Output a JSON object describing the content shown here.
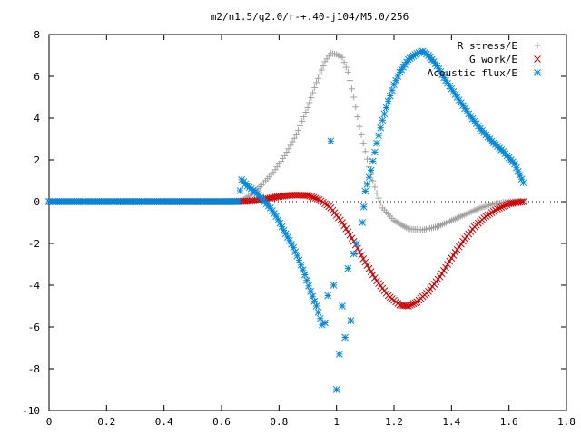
{
  "chart_data": {
    "type": "scatter",
    "title": "m2/n1.5/q2.0/r-+.40-j104/M5.0/256",
    "xlabel": "",
    "ylabel": "",
    "xlim": [
      0,
      1.8
    ],
    "ylim": [
      -10,
      8
    ],
    "x_ticks": [
      "0",
      "0.2",
      "0.4",
      "0.6",
      "0.8",
      "1",
      "1.2",
      "1.4",
      "1.6",
      "1.8"
    ],
    "y_ticks": [
      "-10",
      "-8",
      "-6",
      "-4",
      "-2",
      "0",
      "2",
      "4",
      "6",
      "8"
    ],
    "grid": false,
    "legend_position": "top-right",
    "series": [
      {
        "name": "R stress/E",
        "marker": "plus",
        "color": "#a0a0a0",
        "x_range": [
          0,
          1.65
        ],
        "points": [
          [
            0,
            0
          ],
          [
            0.6,
            0
          ],
          [
            0.67,
            0.05
          ],
          [
            0.7,
            0.3
          ],
          [
            0.74,
            0.8
          ],
          [
            0.78,
            1.4
          ],
          [
            0.82,
            2.2
          ],
          [
            0.86,
            3.2
          ],
          [
            0.9,
            4.5
          ],
          [
            0.93,
            5.7
          ],
          [
            0.96,
            6.7
          ],
          [
            0.98,
            7.1
          ],
          [
            1.0,
            7.05
          ],
          [
            1.02,
            6.9
          ],
          [
            1.04,
            6.2
          ],
          [
            1.06,
            5.0
          ],
          [
            1.08,
            3.6
          ],
          [
            1.1,
            2.4
          ],
          [
            1.12,
            1.3
          ],
          [
            1.14,
            0.4
          ],
          [
            1.16,
            -0.3
          ],
          [
            1.2,
            -0.9
          ],
          [
            1.25,
            -1.3
          ],
          [
            1.3,
            -1.35
          ],
          [
            1.35,
            -1.2
          ],
          [
            1.4,
            -0.9
          ],
          [
            1.45,
            -0.6
          ],
          [
            1.5,
            -0.3
          ],
          [
            1.55,
            -0.1
          ],
          [
            1.6,
            0.0
          ],
          [
            1.65,
            0.0
          ]
        ]
      },
      {
        "name": "G work/E",
        "marker": "cross",
        "color": "#cc0000",
        "x_range": [
          0,
          1.65
        ],
        "points": [
          [
            0,
            0
          ],
          [
            0.65,
            0
          ],
          [
            0.7,
            0.02
          ],
          [
            0.75,
            0.12
          ],
          [
            0.8,
            0.25
          ],
          [
            0.85,
            0.32
          ],
          [
            0.9,
            0.3
          ],
          [
            0.94,
            0.1
          ],
          [
            0.98,
            -0.3
          ],
          [
            1.02,
            -1.0
          ],
          [
            1.06,
            -1.9
          ],
          [
            1.1,
            -2.9
          ],
          [
            1.14,
            -3.8
          ],
          [
            1.18,
            -4.5
          ],
          [
            1.22,
            -4.95
          ],
          [
            1.25,
            -5.0
          ],
          [
            1.28,
            -4.8
          ],
          [
            1.32,
            -4.3
          ],
          [
            1.36,
            -3.6
          ],
          [
            1.4,
            -2.7
          ],
          [
            1.44,
            -1.9
          ],
          [
            1.48,
            -1.2
          ],
          [
            1.52,
            -0.7
          ],
          [
            1.56,
            -0.35
          ],
          [
            1.6,
            -0.1
          ],
          [
            1.65,
            0.0
          ]
        ]
      },
      {
        "name": "Acoustic flux/E",
        "marker": "star",
        "color": "#0088dd",
        "x_range": [
          0,
          1.65
        ],
        "points": [
          [
            0,
            0
          ],
          [
            0.66,
            0
          ],
          [
            0.67,
            1.05
          ],
          [
            0.69,
            0.75
          ],
          [
            0.71,
            0.55
          ],
          [
            0.73,
            0.3
          ],
          [
            0.75,
            0.0
          ],
          [
            0.77,
            -0.3
          ],
          [
            0.79,
            -0.7
          ],
          [
            0.81,
            -1.2
          ],
          [
            0.83,
            -1.7
          ],
          [
            0.85,
            -2.2
          ],
          [
            0.87,
            -2.8
          ],
          [
            0.89,
            -3.5
          ],
          [
            0.91,
            -4.3
          ],
          [
            0.93,
            -5.0
          ],
          [
            0.95,
            -5.9
          ],
          [
            0.96,
            -5.8
          ],
          [
            0.97,
            -4.5
          ],
          [
            0.98,
            2.9
          ],
          [
            0.99,
            -4.0
          ],
          [
            1.0,
            -9.0
          ],
          [
            1.01,
            -7.3
          ],
          [
            1.02,
            -5.0
          ],
          [
            1.03,
            -6.5
          ],
          [
            1.04,
            -3.2
          ],
          [
            1.05,
            -5.7
          ],
          [
            1.06,
            -2.5
          ],
          [
            1.07,
            -2.0
          ],
          [
            1.09,
            -1.0
          ],
          [
            1.1,
            0.5
          ],
          [
            1.12,
            1.5
          ],
          [
            1.14,
            2.8
          ],
          [
            1.16,
            3.9
          ],
          [
            1.18,
            4.8
          ],
          [
            1.2,
            5.6
          ],
          [
            1.22,
            6.2
          ],
          [
            1.25,
            6.8
          ],
          [
            1.28,
            7.1
          ],
          [
            1.3,
            7.2
          ],
          [
            1.32,
            7.0
          ],
          [
            1.35,
            6.5
          ],
          [
            1.38,
            5.8
          ],
          [
            1.42,
            5.0
          ],
          [
            1.46,
            4.2
          ],
          [
            1.5,
            3.5
          ],
          [
            1.54,
            2.9
          ],
          [
            1.58,
            2.4
          ],
          [
            1.62,
            1.8
          ],
          [
            1.65,
            0.9
          ]
        ]
      }
    ]
  }
}
